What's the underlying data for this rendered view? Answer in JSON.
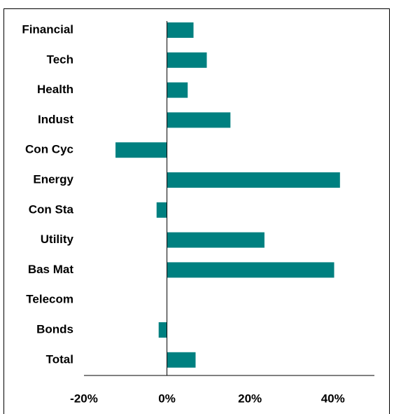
{
  "chart_data": {
    "type": "bar",
    "orientation": "horizontal",
    "categories": [
      "Financial",
      "Tech",
      "Health",
      "Indust",
      "Con Cyc",
      "Energy",
      "Con Sta",
      "Utility",
      "Bas Mat",
      "Telecom",
      "Bonds",
      "Total"
    ],
    "values": [
      6.4,
      9.6,
      5.0,
      15.3,
      -12.4,
      41.7,
      -2.5,
      23.5,
      40.3,
      0,
      -2.0,
      6.9
    ],
    "color": "#008080",
    "xlim": [
      -20,
      50
    ],
    "xticks": [
      {
        "value": -20,
        "label": "-20%"
      },
      {
        "value": 0,
        "label": "0%"
      },
      {
        "value": 20,
        "label": "20%"
      },
      {
        "value": 40,
        "label": "40%"
      }
    ]
  }
}
